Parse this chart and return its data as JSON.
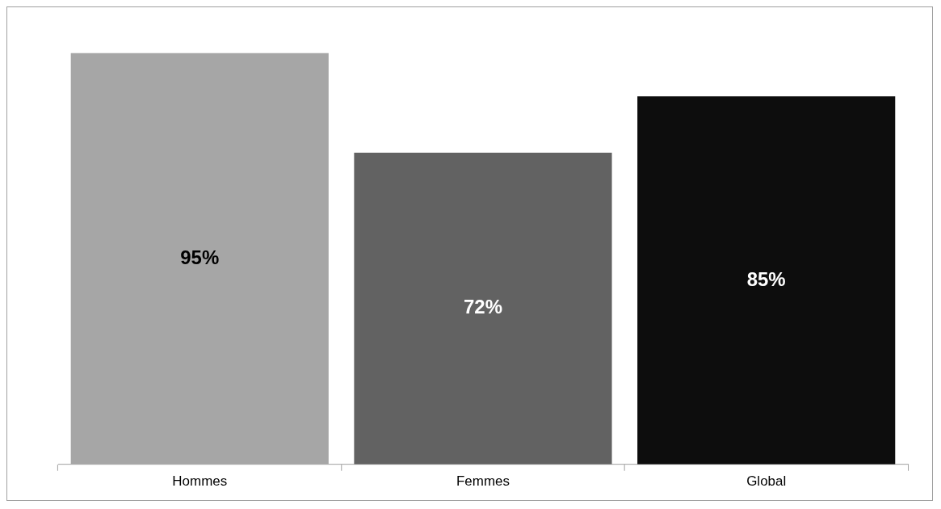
{
  "chart_data": {
    "type": "bar",
    "categories": [
      "Hommes",
      "Femmes",
      "Global"
    ],
    "values": [
      95,
      72,
      85
    ],
    "colors": [
      "#a6a6a6",
      "#626262",
      "#0d0d0d"
    ],
    "value_labels": [
      "95%",
      "72%",
      "85%"
    ],
    "relative": false,
    "legend": false,
    "grid": false
  }
}
